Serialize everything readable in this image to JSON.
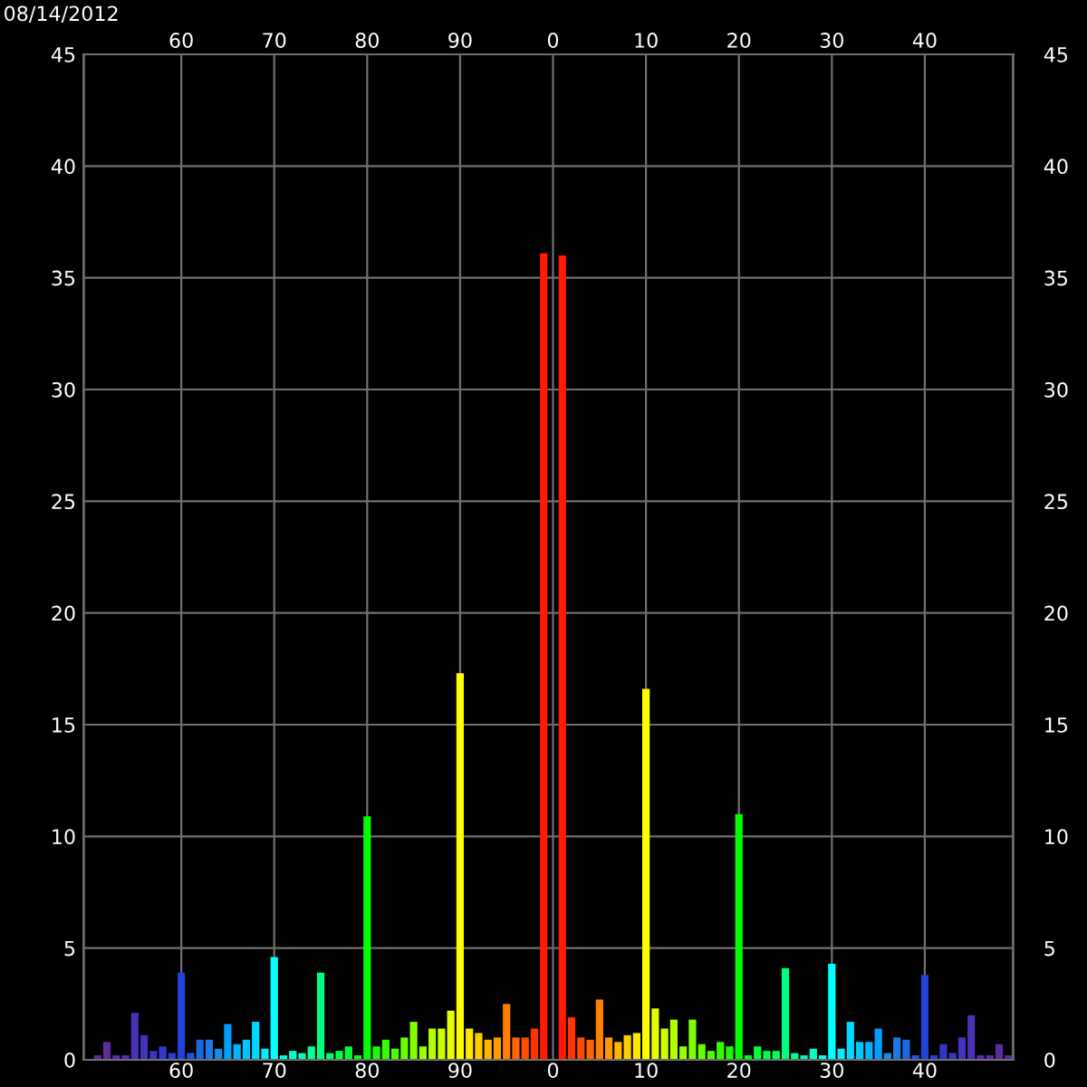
{
  "chart_data": {
    "type": "bar",
    "title": "08/14/2012",
    "categories": [
      null,
      null,
      null,
      null,
      null,
      null,
      null,
      null,
      null,
      null,
      "60",
      null,
      null,
      null,
      null,
      null,
      null,
      null,
      null,
      null,
      "70",
      null,
      null,
      null,
      null,
      null,
      null,
      null,
      null,
      null,
      "80",
      null,
      null,
      null,
      null,
      null,
      null,
      null,
      null,
      null,
      "90",
      null,
      null,
      null,
      null,
      null,
      null,
      null,
      null,
      null,
      "0",
      null,
      null,
      null,
      null,
      null,
      null,
      null,
      null,
      null,
      "10",
      null,
      null,
      null,
      null,
      null,
      null,
      null,
      null,
      null,
      "20",
      null,
      null,
      null,
      null,
      null,
      null,
      null,
      null,
      null,
      "30",
      null,
      null,
      null,
      null,
      null,
      null,
      null,
      null,
      null,
      "40",
      null,
      null,
      null,
      null,
      null,
      null,
      null,
      null,
      null
    ],
    "values": [
      0,
      0.2,
      0.8,
      0.2,
      0.2,
      2.1,
      1.1,
      0.4,
      0.6,
      0.3,
      3.9,
      0.3,
      0.9,
      0.9,
      0.5,
      1.6,
      0.7,
      0.9,
      1.7,
      0.5,
      4.6,
      0.2,
      0.4,
      0.3,
      0.6,
      3.9,
      0.3,
      0.4,
      0.6,
      0.2,
      10.9,
      0.6,
      0.9,
      0.5,
      1.0,
      1.7,
      0.6,
      1.4,
      1.4,
      2.2,
      17.3,
      1.4,
      1.2,
      0.9,
      1.0,
      2.5,
      1.0,
      1.0,
      1.4,
      36.1,
      0,
      36.0,
      1.9,
      1.0,
      0.9,
      2.7,
      1.0,
      0.8,
      1.1,
      1.2,
      16.6,
      2.3,
      1.4,
      1.8,
      0.6,
      1.8,
      0.7,
      0.4,
      0.8,
      0.6,
      11.0,
      0.2,
      0.6,
      0.4,
      0.4,
      4.1,
      0.3,
      0.2,
      0.5,
      0.2,
      4.3,
      0.5,
      1.7,
      0.8,
      0.8,
      1.4,
      0.3,
      1.0,
      0.9,
      0.2,
      3.8,
      0.2,
      0.7,
      0.3,
      1.0,
      2.0,
      0.2,
      0.2,
      0.7,
      0.2
    ],
    "colors": [
      "#602a8c",
      "#5e2a94",
      "#5a2c9c",
      "#562ea4",
      "#5030ac",
      "#4a30b4",
      "#4232bc",
      "#3a34c4",
      "#3238cc",
      "#2a3ed4",
      "#2244d8",
      "#2054dc",
      "#1e66e0",
      "#1c78e4",
      "#1a8ae8",
      "#009fff",
      "#00b3ff",
      "#00c6ff",
      "#00d9ff",
      "#00ecff",
      "#00ffff",
      "#00ffe6",
      "#00ffcc",
      "#00ffb3",
      "#00ff99",
      "#00ff80",
      "#00ff66",
      "#00ff4c",
      "#00ff33",
      "#00ff1a",
      "#00ff00",
      "#1aff00",
      "#33ff00",
      "#4cff00",
      "#66ff00",
      "#80ff00",
      "#99ff00",
      "#b3ff00",
      "#ccff00",
      "#e6ff00",
      "#ffff00",
      "#ffe600",
      "#ffcc00",
      "#ffb300",
      "#ff9900",
      "#ff8000",
      "#ff6600",
      "#ff4c00",
      "#ff3300",
      "#ff1a00",
      "#ff0000",
      "#ff1a00",
      "#ff3300",
      "#ff4c00",
      "#ff6600",
      "#ff8000",
      "#ff9900",
      "#ffb300",
      "#ffcc00",
      "#ffe600",
      "#ffff00",
      "#e6ff00",
      "#ccff00",
      "#b3ff00",
      "#99ff00",
      "#80ff00",
      "#66ff00",
      "#4cff00",
      "#33ff00",
      "#1aff00",
      "#00ff00",
      "#00ff1a",
      "#00ff33",
      "#00ff4c",
      "#00ff66",
      "#00ff80",
      "#00ff99",
      "#00ffb3",
      "#00ffcc",
      "#00ffe6",
      "#00ffff",
      "#00ecff",
      "#00d9ff",
      "#00c6ff",
      "#00b3ff",
      "#009fff",
      "#1a8ae8",
      "#1c78e4",
      "#1e66e0",
      "#2054dc",
      "#2244d8",
      "#2a3ed4",
      "#3238cc",
      "#3a34c4",
      "#4232bc",
      "#4a30b4",
      "#5030ac",
      "#562ea4",
      "#5a2c9c",
      "#5e2a94"
    ],
    "ylim": [
      0,
      45
    ],
    "yticks": [
      0,
      5,
      10,
      15,
      20,
      25,
      30,
      35,
      40,
      45
    ],
    "y2lim": [
      0,
      45
    ],
    "y2ticks": [
      0,
      5,
      10,
      15,
      20,
      25,
      30,
      35,
      40,
      45
    ],
    "grid": true
  }
}
